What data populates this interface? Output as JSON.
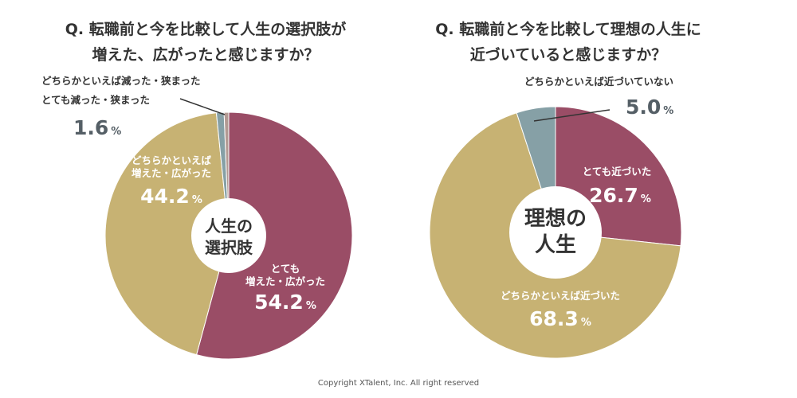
{
  "colors": {
    "crimson": "#9a4d66",
    "gold": "#c7b273",
    "slate": "#86a0a6",
    "taupe": "#b39a93",
    "white": "#ffffff"
  },
  "chart_data": [
    {
      "type": "pie",
      "title_line1": "Q. 転職前と今を比較して人生の選択肢が",
      "title_line2": "増えた、広がったと感じますか？",
      "center_line1": "人生の",
      "center_line2": "選択肢",
      "slices": [
        {
          "name": "とても増えた・広がった",
          "value": 54.2,
          "label_line1": "とても",
          "label_line2": "増えた・広がった",
          "value_text": "54.2",
          "unit": "%"
        },
        {
          "name": "どちらかといえば増えた・広がった",
          "value": 44.2,
          "label_line1": "どちらかといえば",
          "label_line2": "増えた・広がった",
          "value_text": "44.2",
          "unit": "%"
        },
        {
          "name": "どちらかといえば減った・狭まった",
          "value": 1.0,
          "label_line1": "どちらかといえば減った・狭まった",
          "label_line2": "とても減った・狭まった"
        },
        {
          "name": "とても減った・狭まった",
          "value": 0.6
        }
      ],
      "combined_small_value": "1.6",
      "combined_small_unit": "%"
    },
    {
      "type": "pie",
      "title_line1": "Q. 転職前と今を比較して理想の人生に",
      "title_line2": "近づいていると感じますか？",
      "center_line1": "理想の",
      "center_line2": "人生",
      "slices": [
        {
          "name": "とても近づいた",
          "value": 26.7,
          "label_line1": "とても近づいた",
          "value_text": "26.7",
          "unit": "%"
        },
        {
          "name": "どちらかといえば近づいた",
          "value": 68.3,
          "label_line1": "どちらかといえば近づいた",
          "value_text": "68.3",
          "unit": "%"
        },
        {
          "name": "どちらかといえば近づいていない",
          "value": 5.0,
          "label_line1": "どちらかといえば近づいていない",
          "value_text": "5.0",
          "unit": "%"
        }
      ]
    }
  ],
  "footer": {
    "copyright": "Copyright XTalent, Inc. All right reserved"
  }
}
